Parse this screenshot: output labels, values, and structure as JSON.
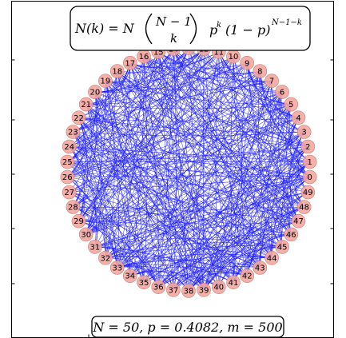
{
  "title_box": {
    "lhs": "N(k) = N",
    "binom_top": "N − 1",
    "binom_bottom": "k",
    "p_base": "p",
    "p_exp": "k",
    "q_base": "(1 − p)",
    "q_exp": "N−1−k"
  },
  "params": {
    "text": "N = 50, p = 0.4082, m = 500"
  },
  "graph": {
    "node_count": 50,
    "edge_count": 500,
    "p": 0.4082,
    "node_color": "#f4a7a0",
    "node_stroke": "#c87b75",
    "edge_color": "#1a1aff"
  }
}
